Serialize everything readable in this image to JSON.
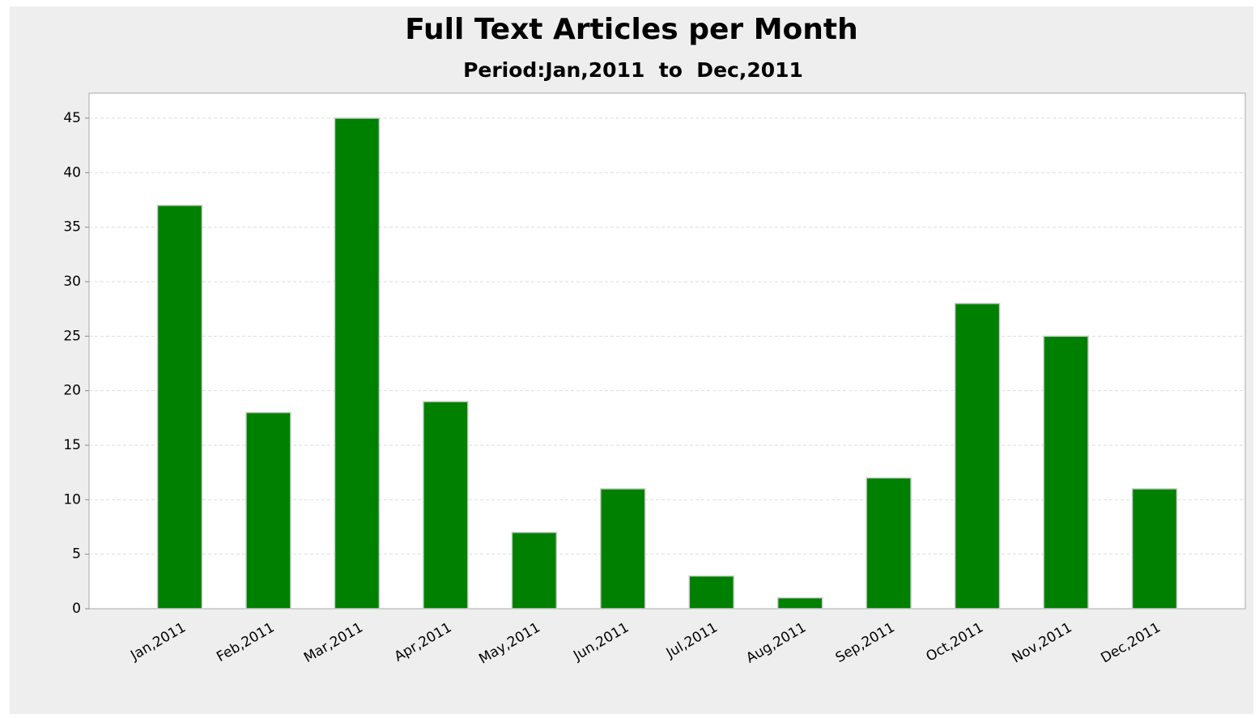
{
  "chart_data": {
    "type": "bar",
    "title": "Full Text Articles per Month",
    "subtitle": "Period:Jan,2011  to  Dec,2011",
    "categories": [
      "Jan,2011",
      "Feb,2011",
      "Mar,2011",
      "Apr,2011",
      "May,2011",
      "Jun,2011",
      "Jul,2011",
      "Aug,2011",
      "Sep,2011",
      "Oct,2011",
      "Nov,2011",
      "Dec,2011"
    ],
    "values": [
      37,
      18,
      45,
      19,
      7,
      11,
      3,
      1,
      12,
      28,
      25,
      11
    ],
    "color": "#008000",
    "ylim": [
      0,
      47.3
    ],
    "yticks": [
      0,
      5,
      10,
      15,
      20,
      25,
      30,
      35,
      40,
      45
    ],
    "grid": true
  }
}
